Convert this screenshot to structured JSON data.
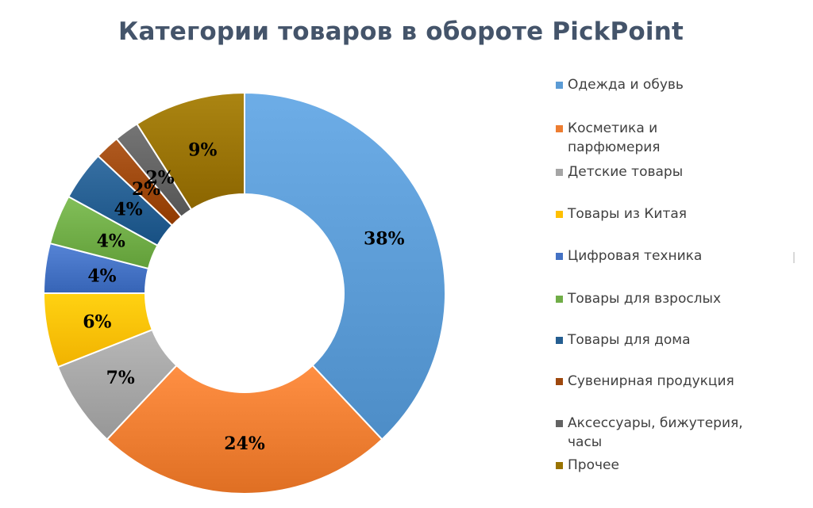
{
  "chart_data": {
    "type": "pie",
    "title": "Категории товаров в обороте PickPoint",
    "legend_position": "right",
    "categories": [
      "Одежда и обувь",
      "Косметика и парфюмерия",
      "Детские товары",
      "Товары из Китая",
      "Цифровая техника",
      "Товары для взрослых",
      "Товары для дома",
      "Сувенирная продукция",
      "Аксессуары, бижутерия, часы",
      "Прочее"
    ],
    "values": [
      38,
      24,
      7,
      6,
      4,
      4,
      4,
      2,
      2,
      9
    ],
    "labels": [
      "38%",
      "24%",
      "7%",
      "6%",
      "4%",
      "4%",
      "4%",
      "2%",
      "2%",
      "9%"
    ],
    "colors": [
      "#5b9bd5",
      "#ed7d31",
      "#a5a5a5",
      "#ffc000",
      "#4472c4",
      "#70ad47",
      "#255e91",
      "#9e480e",
      "#636363",
      "#997300"
    ],
    "legend_labels": [
      [
        "Одежда и обувь"
      ],
      [
        "Косметика и",
        "парфюмерия"
      ],
      [
        "Детские товары"
      ],
      [
        "Товары из Китая"
      ],
      [
        "Цифровая техника"
      ],
      [
        "Товары для взрослых"
      ],
      [
        "Товары для дома"
      ],
      [
        "Сувенирная продукция"
      ],
      [
        "Аксессуары, бижутерия,",
        "часы"
      ],
      [
        "Прочее"
      ]
    ]
  }
}
